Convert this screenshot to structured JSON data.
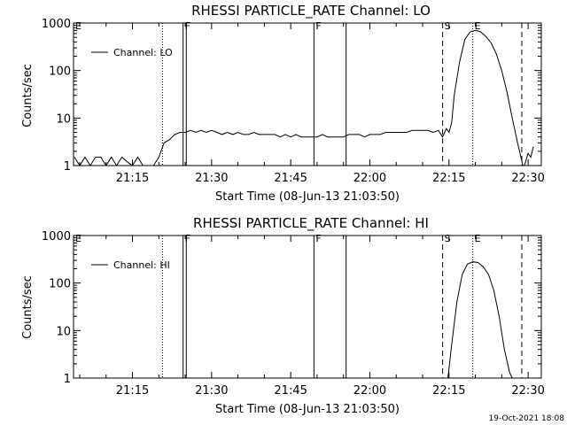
{
  "figure": {
    "timestamp": "19-Oct-2021 18:08"
  },
  "chart_data": [
    {
      "type": "line",
      "title": "RHESSI PARTICLE_RATE Channel: LO",
      "xlabel": "Start Time (08-Jun-13 21:03:50)",
      "ylabel": "Counts/sec",
      "y_scale": "log",
      "ylim": [
        1,
        1000
      ],
      "x_minutes_range": [
        3.83,
        92.5
      ],
      "xtick_minutes": [
        15,
        30,
        45,
        60,
        75,
        90
      ],
      "xtick_labels": [
        "21:15",
        "21:30",
        "21:45",
        "22:00",
        "22:15",
        "22:30"
      ],
      "ytick_values": [
        1,
        10,
        100,
        1000
      ],
      "ytick_labels": [
        "1",
        "10",
        "100",
        "1000"
      ],
      "legend": {
        "label": "Channel: LO",
        "position": "top-left"
      },
      "series": [
        {
          "x_minutes": [
            4,
            5,
            6,
            7,
            8,
            9,
            10,
            11,
            12,
            13,
            14,
            15,
            16,
            17,
            18,
            19,
            20,
            21,
            22,
            23,
            24,
            25,
            26,
            27,
            28,
            29,
            30,
            31,
            32,
            33,
            34,
            35,
            36,
            37,
            38,
            39,
            40,
            41,
            42,
            43,
            44,
            45,
            46,
            47,
            48,
            49,
            50,
            51,
            52,
            53,
            54,
            55,
            56,
            57,
            58,
            59,
            60,
            61,
            62,
            63,
            64,
            65,
            66,
            67,
            68,
            69,
            70,
            71,
            72,
            73,
            73.8,
            74.5,
            75,
            75.5,
            76,
            77,
            78,
            79,
            80,
            81,
            82,
            83,
            84,
            85,
            86,
            87,
            88,
            89,
            89.3,
            90,
            90.5,
            91
          ],
          "y": [
            1.5,
            1,
            1.5,
            1,
            1.5,
            1.5,
            1,
            1.5,
            1,
            1.5,
            1.2,
            1,
            1.5,
            1,
            1,
            1,
            1.5,
            3,
            3.5,
            4.5,
            5,
            5,
            5.5,
            5,
            5.5,
            5,
            5.5,
            5,
            4.5,
            5,
            4.5,
            5,
            4.5,
            4.5,
            5,
            4.5,
            4.5,
            4.5,
            4.5,
            4,
            4.5,
            4,
            4.5,
            4,
            4,
            4,
            4,
            4.5,
            4,
            4,
            4,
            4,
            4.5,
            4.5,
            4.5,
            4,
            4.5,
            4.5,
            4.5,
            5,
            5,
            5,
            5,
            5,
            5.5,
            5.5,
            5.5,
            5.5,
            5,
            5.5,
            4,
            6,
            5,
            8,
            30,
            150,
            450,
            650,
            700,
            650,
            520,
            380,
            220,
            100,
            35,
            10,
            3,
            1,
            1,
            1.8,
            1.5,
            2.5
          ]
        }
      ]
    },
    {
      "type": "line",
      "title": "RHESSI PARTICLE_RATE Channel: HI",
      "xlabel": "Start Time (08-Jun-13 21:03:50)",
      "ylabel": "Counts/sec",
      "y_scale": "log",
      "ylim": [
        1,
        1000
      ],
      "x_minutes_range": [
        3.83,
        92.5
      ],
      "xtick_minutes": [
        15,
        30,
        45,
        60,
        75,
        90
      ],
      "xtick_labels": [
        "21:15",
        "21:30",
        "21:45",
        "22:00",
        "22:15",
        "22:30"
      ],
      "ytick_values": [
        1,
        10,
        100,
        1000
      ],
      "ytick_labels": [
        "1",
        "10",
        "100",
        "1000"
      ],
      "legend": {
        "label": "Channel: HI",
        "position": "top-left"
      },
      "series": [
        {
          "x_minutes": [
            74.8,
            75.5,
            76.5,
            77.5,
            78.5,
            79.5,
            80.5,
            81.5,
            82.5,
            83.5,
            84.5,
            85.5,
            86.5,
            87
          ],
          "y": [
            1,
            5,
            40,
            150,
            250,
            280,
            270,
            220,
            150,
            70,
            20,
            4,
            1.3,
            1
          ]
        }
      ]
    }
  ],
  "panels": [
    {
      "markers": [
        {
          "label": "E",
          "minute": 3.83,
          "style": "none"
        },
        {
          "label": "",
          "minute": 20.7,
          "style": "dotted"
        },
        {
          "label": "F",
          "minute": 24.6,
          "style": "solid"
        },
        {
          "label": "",
          "minute": 25.2,
          "style": "solid"
        },
        {
          "label": "F",
          "minute": 49.4,
          "style": "solid"
        },
        {
          "label": "",
          "minute": 55.5,
          "style": "solid"
        },
        {
          "label": "S",
          "minute": 73.8,
          "style": "dashed"
        },
        {
          "label": "E",
          "minute": 79.5,
          "style": "dotted"
        },
        {
          "label": "",
          "minute": 88.8,
          "style": "dashed"
        },
        {
          "label": "",
          "minute": 92.5,
          "style": "dotted"
        }
      ]
    },
    {
      "markers": [
        {
          "label": "E",
          "minute": 3.83,
          "style": "none"
        },
        {
          "label": "",
          "minute": 20.7,
          "style": "dotted"
        },
        {
          "label": "F",
          "minute": 24.6,
          "style": "solid"
        },
        {
          "label": "",
          "minute": 25.2,
          "style": "solid"
        },
        {
          "label": "F",
          "minute": 49.4,
          "style": "solid"
        },
        {
          "label": "",
          "minute": 55.5,
          "style": "solid"
        },
        {
          "label": "S",
          "minute": 73.8,
          "style": "dashed"
        },
        {
          "label": "E",
          "minute": 79.5,
          "style": "dotted"
        },
        {
          "label": "",
          "minute": 88.8,
          "style": "dashed"
        },
        {
          "label": "",
          "minute": 92.5,
          "style": "dotted"
        }
      ]
    }
  ]
}
